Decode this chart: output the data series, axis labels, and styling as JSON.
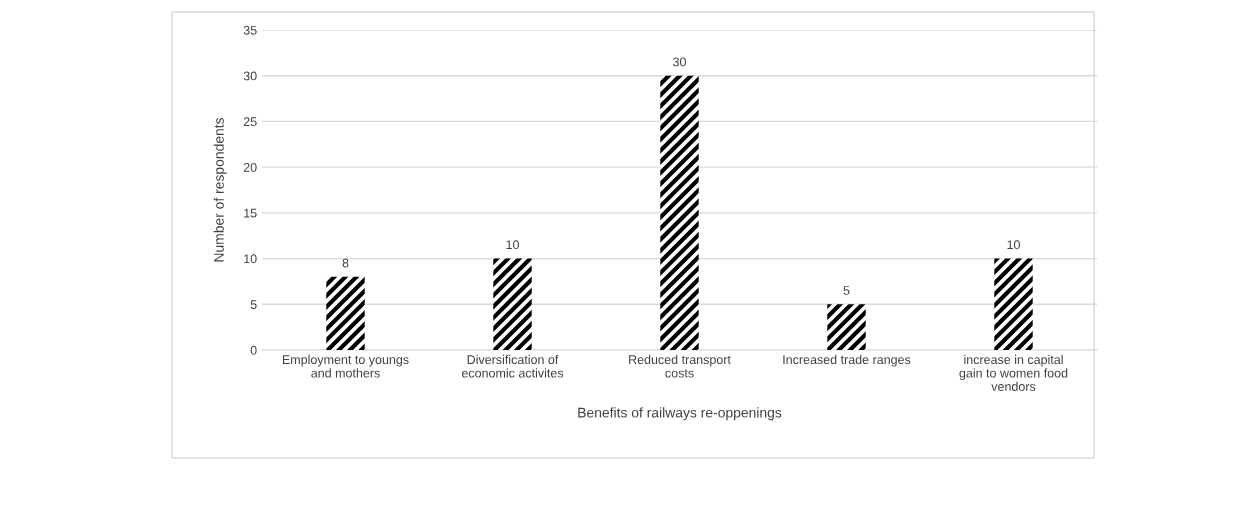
{
  "chart_data": {
    "type": "bar",
    "categories": [
      "Employment to youngs and mothers",
      "Diversification of economic activites",
      "Reduced transport costs",
      "Increased trade ranges",
      "increase in capital gain to women food vendors"
    ],
    "values": [
      8,
      10,
      30,
      5,
      10
    ],
    "color": "#ffffff",
    "xlabel": "Benefits of railways re-oppenings",
    "ylabel": "Number of respondents",
    "ylim": [
      0,
      35
    ],
    "yticks": [
      0,
      5,
      10,
      15,
      20,
      25,
      30,
      35
    ],
    "grid": "y",
    "data_labels": true
  }
}
